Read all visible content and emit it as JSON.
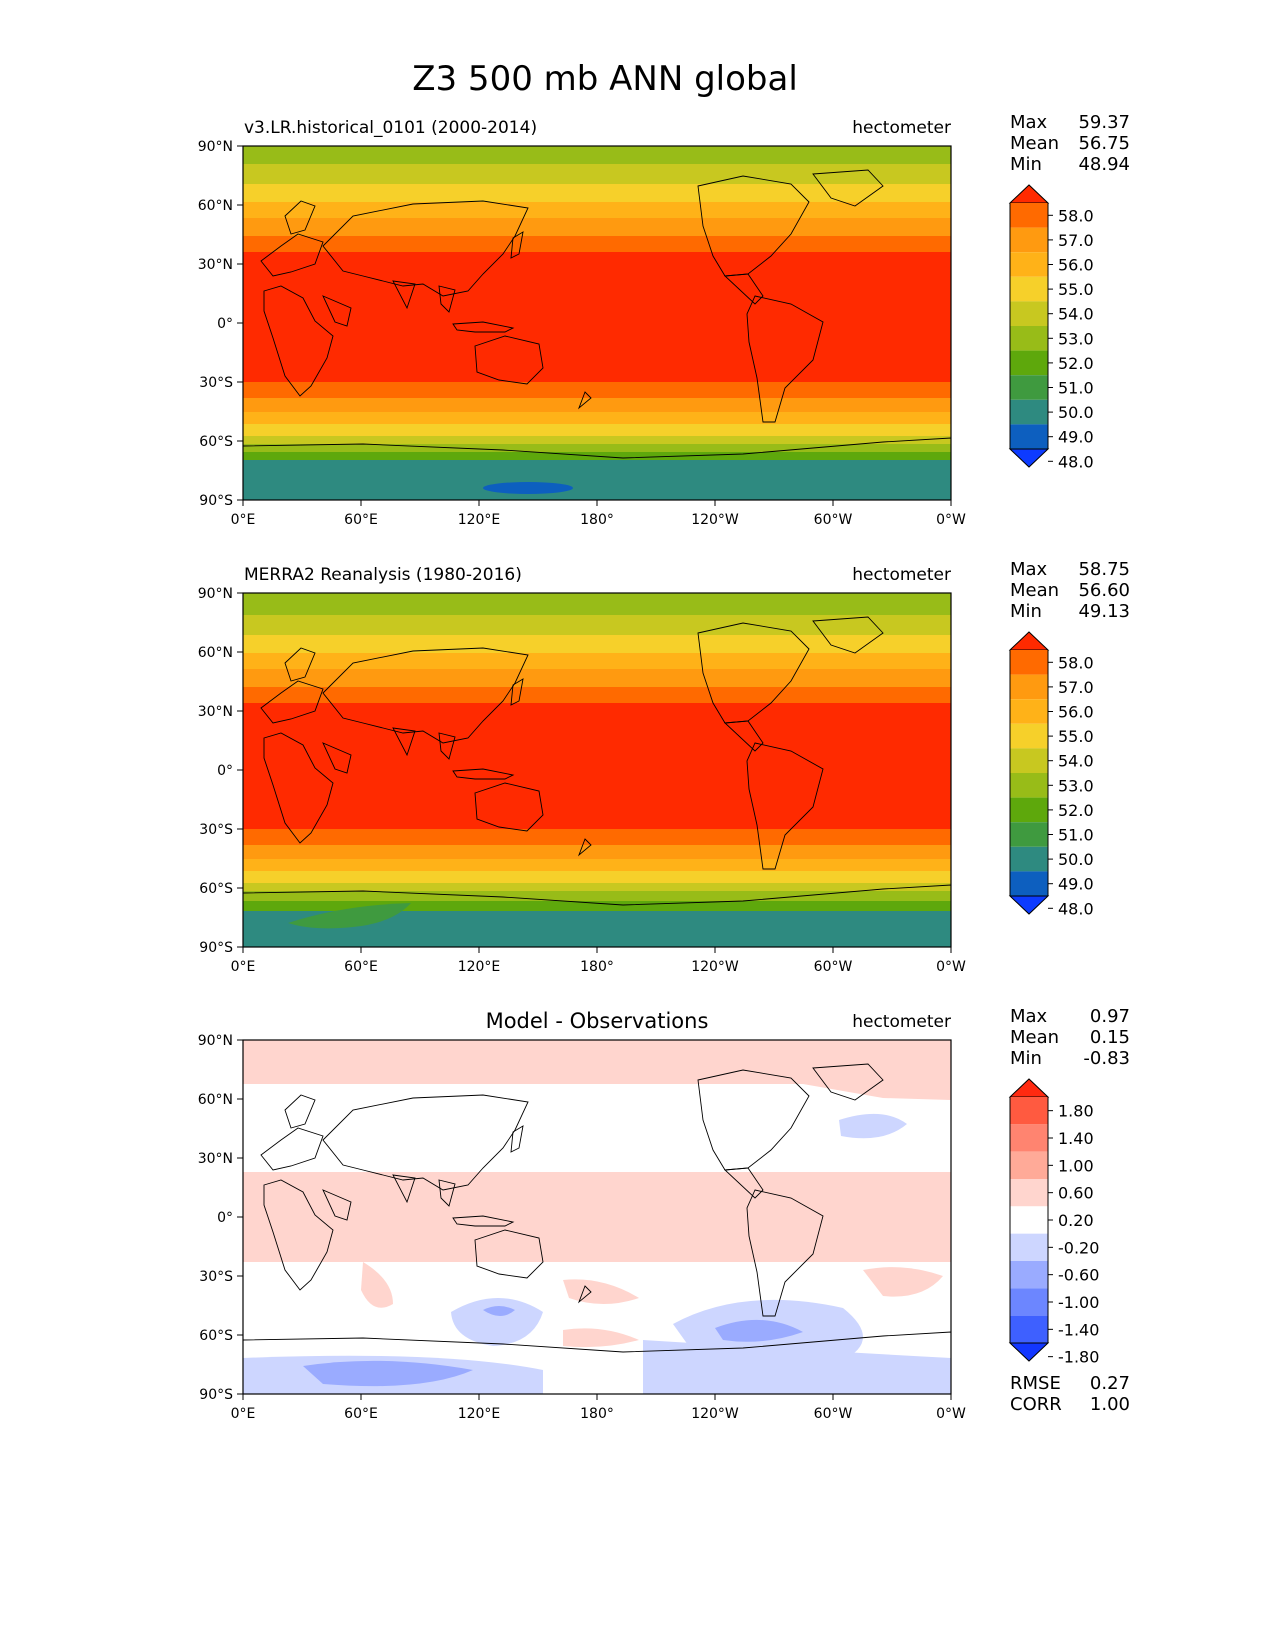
{
  "title": "Z3 500 mb ANN global",
  "lat_ticks": [
    "90°N",
    "60°N",
    "30°N",
    "0°",
    "30°S",
    "60°S",
    "90°S"
  ],
  "lon_ticks": [
    "0°E",
    "60°E",
    "120°E",
    "180°",
    "120°W",
    "60°W",
    "0°W"
  ],
  "stat_labels": {
    "max": "Max",
    "mean": "Mean",
    "min": "Min",
    "rmse": "RMSE",
    "corr": "CORR"
  },
  "panels": [
    {
      "id": "test",
      "left_label": "v3.LR.historical_0101 (2000-2014)",
      "center_label": "",
      "units": "hectometer",
      "stats": {
        "max": "59.37",
        "mean": "56.75",
        "min": "48.94"
      },
      "colormap": "absolute",
      "variant": 0
    },
    {
      "id": "reference",
      "left_label": "MERRA2 Reanalysis (1980-2016)",
      "center_label": "",
      "units": "hectometer",
      "stats": {
        "max": "58.75",
        "mean": "56.60",
        "min": "49.13"
      },
      "colormap": "absolute",
      "variant": 1
    },
    {
      "id": "difference",
      "left_label": "",
      "center_label": "Model - Observations",
      "units": "hectometer",
      "stats": {
        "max": "0.97",
        "mean": "0.15",
        "min": "-0.83"
      },
      "extra_stats": {
        "rmse": "0.27",
        "corr": "1.00"
      },
      "colormap": "difference",
      "variant": 2
    }
  ],
  "colormaps": {
    "absolute": {
      "levels": [
        "58.0",
        "57.0",
        "56.0",
        "55.0",
        "54.0",
        "53.0",
        "52.0",
        "51.0",
        "50.0",
        "49.0",
        "48.0"
      ],
      "colors_top_to_bottom": [
        "#ff2a00",
        "#ff6a00",
        "#ff9a10",
        "#ffb218",
        "#f6d02a",
        "#c8c820",
        "#98bc18",
        "#5ea80c",
        "#3f9a3f",
        "#2e8a80",
        "#0d5fbf",
        "#0d3bff"
      ]
    },
    "difference": {
      "levels": [
        "1.80",
        "1.40",
        "1.00",
        "0.60",
        "0.20",
        "-0.20",
        "-0.60",
        "-1.00",
        "-1.40",
        "-1.80"
      ],
      "colors_top_to_bottom": [
        "#ff2a10",
        "#ff5a40",
        "#ff8470",
        "#ffaa98",
        "#ffd5ce",
        "#ffffff",
        "#cdd6ff",
        "#9aabff",
        "#6c86ff",
        "#3e60ff",
        "#1236ff"
      ]
    }
  }
}
